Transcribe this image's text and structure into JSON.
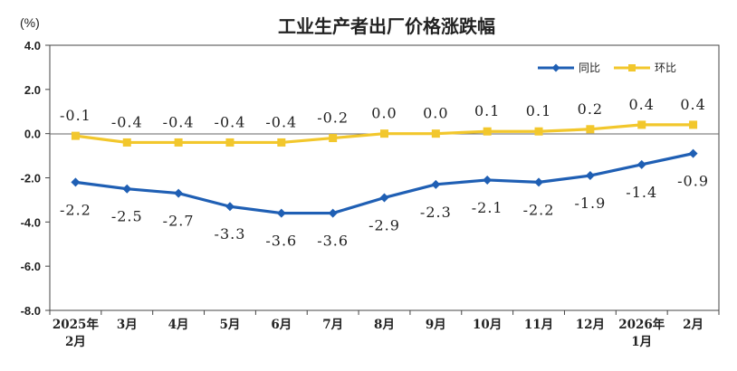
{
  "chart_data": {
    "type": "line",
    "title": "工业生产者出厂价格涨跌幅",
    "unit_label": "(%)",
    "ylim": [
      -8.0,
      4.0
    ],
    "yticks": [
      "4.0",
      "2.0",
      "0.0",
      "-2.0",
      "-4.0",
      "-6.0",
      "-8.0"
    ],
    "categories": [
      [
        "2025年",
        "2月"
      ],
      [
        "3月"
      ],
      [
        "4月"
      ],
      [
        "5月"
      ],
      [
        "6月"
      ],
      [
        "7月"
      ],
      [
        "8月"
      ],
      [
        "9月"
      ],
      [
        "10月"
      ],
      [
        "11月"
      ],
      [
        "12月"
      ],
      [
        "2026年",
        "1月"
      ],
      [
        "2月"
      ]
    ],
    "grid": false,
    "legend_position": "top-right",
    "series": [
      {
        "name": "同比",
        "color": "#1f5fb4",
        "marker": "diamond",
        "values": [
          -2.2,
          -2.5,
          -2.7,
          -3.3,
          -3.6,
          -3.6,
          -2.9,
          -2.3,
          -2.1,
          -2.2,
          -1.9,
          -1.4,
          -0.9
        ],
        "labels": [
          "-2.2",
          "-2.5",
          "-2.7",
          "-3.3",
          "-3.6",
          "-3.6",
          "-2.9",
          "-2.3",
          "-2.1",
          "-2.2",
          "-1.9",
          "-1.4",
          "-0.9"
        ],
        "label_position": "below"
      },
      {
        "name": "环比",
        "color": "#f2c72c",
        "marker": "square",
        "values": [
          -0.1,
          -0.4,
          -0.4,
          -0.4,
          -0.4,
          -0.2,
          0.0,
          0.0,
          0.1,
          0.1,
          0.2,
          0.4,
          0.4
        ],
        "labels": [
          "-0.1",
          "-0.4",
          "-0.4",
          "-0.4",
          "-0.4",
          "-0.2",
          "0.0",
          "0.0",
          "0.1",
          "0.1",
          "0.2",
          "0.4",
          "0.4"
        ],
        "label_position": "above"
      }
    ]
  }
}
